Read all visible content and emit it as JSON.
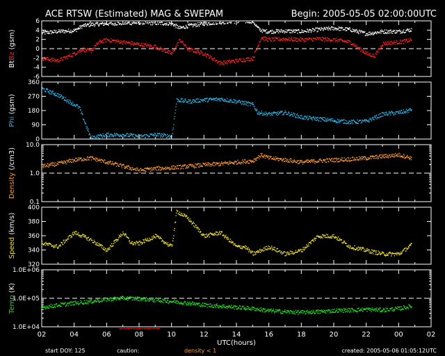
{
  "header": {
    "title": "ACE RTSW (Estimated) MAG & SWEPAM",
    "begin": "Begin: 2005-05-05 02:00:00UTC"
  },
  "footer": {
    "start_doy": "start DOY: 125",
    "caution_label": "caution:",
    "caution_note": "density < 1",
    "created": "created: 2005-05-06 01:05:12UTC"
  },
  "colors": {
    "bt": "#ffffff",
    "bz": "#ff2020",
    "phi": "#29b6e8",
    "density": "#ff9933",
    "speed": "#f0e030",
    "temp": "#22dd22"
  },
  "chart_data": [
    {
      "type": "scatter",
      "title": "Bt / Bz",
      "ylabel_parts": [
        {
          "text": "Bt",
          "color": "#ffffff"
        },
        {
          "text": "Bz",
          "color": "#ff2020"
        },
        {
          "text": " (gsm)",
          "color": "#ffffff"
        }
      ],
      "ylim": [
        -6,
        6
      ],
      "yticks": [
        "6",
        "4",
        "2",
        "0",
        "-2",
        "-4",
        "-6"
      ],
      "ytick_values": [
        6,
        4,
        2,
        0,
        -2,
        -4,
        -6
      ],
      "dashed_line": 0,
      "series": [
        {
          "name": "Bt",
          "color": "#ffffff",
          "x": [
            2,
            3,
            4,
            4.5,
            5,
            6,
            7,
            8,
            9,
            10,
            10.5,
            11,
            12,
            13,
            14,
            15,
            15.3,
            15.6,
            16,
            17,
            18,
            19,
            20,
            21,
            22,
            23,
            24,
            24.8
          ],
          "values": [
            3.5,
            3.8,
            4,
            5,
            5.3,
            5.5,
            5.6,
            5.7,
            5.6,
            5.5,
            4.5,
            5,
            5.5,
            5.8,
            6,
            6,
            4.5,
            3.9,
            3.8,
            3.9,
            3.8,
            4.2,
            4.5,
            4.2,
            3.3,
            3.8,
            3.8,
            4.2
          ]
        },
        {
          "name": "Bz",
          "color": "#ff2020",
          "x": [
            2,
            3,
            4,
            4.5,
            5,
            5.5,
            6,
            7,
            8,
            9,
            10,
            10.5,
            11,
            12,
            13,
            14,
            15,
            15.5,
            16,
            17,
            18,
            19,
            20,
            21,
            22,
            22.5,
            23,
            24,
            24.8
          ],
          "values": [
            -2,
            -2.5,
            -1,
            0,
            -0.5,
            1.5,
            2,
            1.5,
            1,
            0.5,
            -1,
            2,
            0,
            -1,
            -3,
            -2.5,
            -2,
            2.5,
            2,
            2.2,
            2,
            2.2,
            2,
            1.5,
            -1,
            -1.5,
            1.2,
            1.5,
            2
          ]
        }
      ]
    },
    {
      "type": "scatter",
      "title": "Phi",
      "ylabel_parts": [
        {
          "text": "Phi",
          "color": "#29b6e8"
        },
        {
          "text": " (gsm)",
          "color": "#ffffff"
        }
      ],
      "ylim": [
        0,
        360
      ],
      "yticks": [
        "360",
        "270",
        "180",
        "90",
        "0"
      ],
      "ytick_values": [
        360,
        270,
        180,
        90,
        0
      ],
      "series": [
        {
          "name": "Phi",
          "color": "#29b6e8",
          "x": [
            2,
            2.5,
            3,
            3.5,
            4,
            4.3,
            5,
            6,
            7,
            8,
            9,
            10,
            10.3,
            11,
            12,
            13,
            14,
            15,
            15.3,
            16,
            17,
            18,
            19,
            20,
            21,
            22,
            23,
            24,
            24.5,
            24.8
          ],
          "values": [
            320,
            300,
            280,
            250,
            220,
            200,
            10,
            30,
            30,
            20,
            30,
            20,
            250,
            240,
            250,
            255,
            240,
            220,
            170,
            160,
            170,
            140,
            130,
            120,
            110,
            115,
            160,
            170,
            180,
            190
          ]
        }
      ]
    },
    {
      "type": "scatter",
      "title": "Density",
      "ylabel_parts": [
        {
          "text": "Density",
          "color": "#ff9933"
        },
        {
          "text": " (/cm3)",
          "color": "#ffffff"
        }
      ],
      "log_scale": true,
      "ylim": [
        0.1,
        10
      ],
      "yticks": [
        "10.0",
        "1.0",
        "0.1"
      ],
      "ytick_values": [
        10,
        1,
        0.1
      ],
      "dashed_line": 1,
      "series": [
        {
          "name": "Density",
          "color": "#ff9933",
          "x": [
            2,
            3,
            4,
            5,
            6,
            7,
            8,
            9,
            10,
            11,
            12,
            13,
            14,
            15,
            15.5,
            16,
            17,
            18,
            19,
            20,
            21,
            22,
            23,
            24,
            24.8
          ],
          "values": [
            1.8,
            2.2,
            3,
            3.5,
            2.5,
            1.8,
            1.3,
            1.5,
            1.6,
            1.8,
            2,
            2.2,
            2.5,
            2.8,
            4.5,
            3.5,
            3,
            2.5,
            2.8,
            3,
            3.2,
            3.5,
            4,
            4.5,
            3.5
          ]
        }
      ]
    },
    {
      "type": "scatter",
      "title": "Speed",
      "ylabel_parts": [
        {
          "text": "Speed",
          "color": "#f0e030"
        },
        {
          "text": " (km/s)",
          "color": "#ffffff"
        }
      ],
      "ylim": [
        320,
        400
      ],
      "yticks": [
        "400",
        "380",
        "360",
        "340",
        "320"
      ],
      "ytick_values": [
        400,
        380,
        360,
        340,
        320
      ],
      "series": [
        {
          "name": "Speed",
          "color": "#f0e030",
          "x": [
            2,
            3,
            4,
            5,
            6,
            7,
            7.5,
            8,
            9,
            10,
            10.3,
            11,
            12,
            13,
            14,
            14.5,
            15,
            16,
            17,
            18,
            19,
            20,
            21,
            22,
            23,
            24,
            24.8
          ],
          "values": [
            350,
            345,
            365,
            355,
            340,
            365,
            350,
            350,
            360,
            345,
            395,
            385,
            360,
            365,
            345,
            345,
            335,
            345,
            335,
            340,
            360,
            360,
            345,
            340,
            335,
            335,
            348
          ]
        }
      ]
    },
    {
      "type": "scatter",
      "title": "Temp",
      "ylabel_parts": [
        {
          "text": "Temp",
          "color": "#22dd22"
        },
        {
          "text": " (K)",
          "color": "#ffffff"
        }
      ],
      "log_scale": true,
      "ylim": [
        10000,
        1000000
      ],
      "yticks": [
        "1.0E+06",
        "1.0E+05",
        "1.0E+04"
      ],
      "ytick_values": [
        1000000,
        100000,
        10000
      ],
      "dashed_line": 100000,
      "series": [
        {
          "name": "Temp",
          "color": "#22dd22",
          "x": [
            2,
            3,
            4,
            5,
            6,
            7,
            8,
            9,
            10,
            11,
            12,
            13,
            14,
            15,
            16,
            17,
            18,
            19,
            20,
            21,
            22,
            23,
            24,
            24.8
          ],
          "values": [
            50000,
            60000,
            70000,
            80000,
            95000,
            105000,
            100000,
            90000,
            80000,
            70000,
            60000,
            55000,
            50000,
            45000,
            38000,
            35000,
            33000,
            35000,
            38000,
            40000,
            42000,
            40000,
            45000,
            55000
          ]
        }
      ]
    }
  ],
  "xaxis": {
    "label": "UTC(hours)",
    "ticks": [
      "02",
      "04",
      "06",
      "08",
      "10",
      "12",
      "14",
      "16",
      "18",
      "20",
      "22",
      "00",
      "02"
    ],
    "range": [
      2,
      26
    ]
  },
  "caution_ranges": [
    [
      6.8,
      9.2
    ]
  ]
}
